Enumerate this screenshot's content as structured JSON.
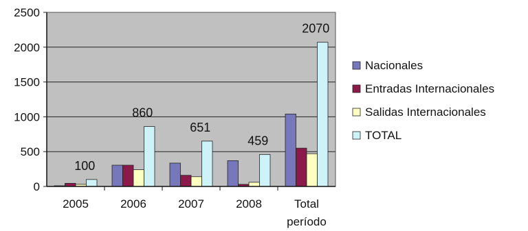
{
  "chart_data": {
    "type": "bar",
    "categories": [
      [
        "2005"
      ],
      [
        "2006"
      ],
      [
        "2007"
      ],
      [
        "2008"
      ],
      [
        "Total",
        "período"
      ]
    ],
    "series": [
      {
        "name": "Nacionales",
        "values": [
          10,
          305,
          335,
          370,
          1040
        ],
        "color": "#7777bb"
      },
      {
        "name": "Entradas Internacionales",
        "values": [
          45,
          305,
          160,
          30,
          550
        ],
        "color": "#8b1a4a"
      },
      {
        "name": "Salidas Internacionales",
        "values": [
          30,
          240,
          140,
          60,
          470
        ],
        "color": "#ffffc2"
      },
      {
        "name": "TOTAL",
        "values": [
          100,
          860,
          651,
          459,
          2070
        ],
        "color": "#cdf3f8"
      }
    ],
    "data_labels": {
      "series": "TOTAL",
      "values": [
        "100",
        "860",
        "651",
        "459",
        "2070"
      ]
    },
    "yticks": [
      "0",
      "500",
      "1000",
      "1500",
      "2000",
      "2500"
    ],
    "ylim": [
      0,
      2500
    ],
    "grid": true,
    "legend_position": "right",
    "plot_background": "#c0c0c0",
    "title": "",
    "xlabel": "",
    "ylabel": ""
  }
}
